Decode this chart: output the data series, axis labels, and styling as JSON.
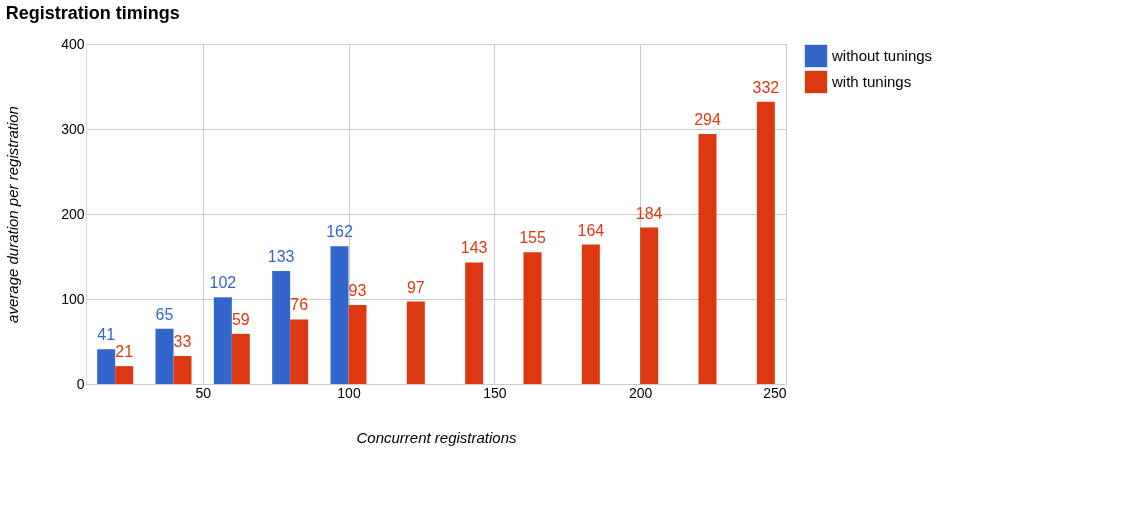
{
  "chart_data": {
    "type": "bar",
    "title": "Registration timings",
    "xlabel": "Concurrent registrations",
    "ylabel": "average duration per registration",
    "x": [
      20,
      40,
      60,
      80,
      100,
      120,
      140,
      160,
      180,
      200,
      220,
      240
    ],
    "series": [
      {
        "name": "without tunings",
        "color": "#3366cc",
        "values": [
          41,
          65,
          102,
          133,
          162,
          null,
          null,
          null,
          null,
          null,
          null,
          null
        ]
      },
      {
        "name": "with tunings",
        "color": "#dc3912",
        "values": [
          21,
          33,
          59,
          76,
          93,
          97,
          143,
          155,
          164,
          184,
          294,
          332
        ]
      }
    ],
    "xlim": [
      10,
      250
    ],
    "xticks": [
      50,
      100,
      150,
      200,
      250
    ],
    "ylim": [
      0,
      400
    ],
    "yticks": [
      0,
      100,
      200,
      300,
      400
    ],
    "grid": true,
    "legend": "top right",
    "data_labels": true
  }
}
